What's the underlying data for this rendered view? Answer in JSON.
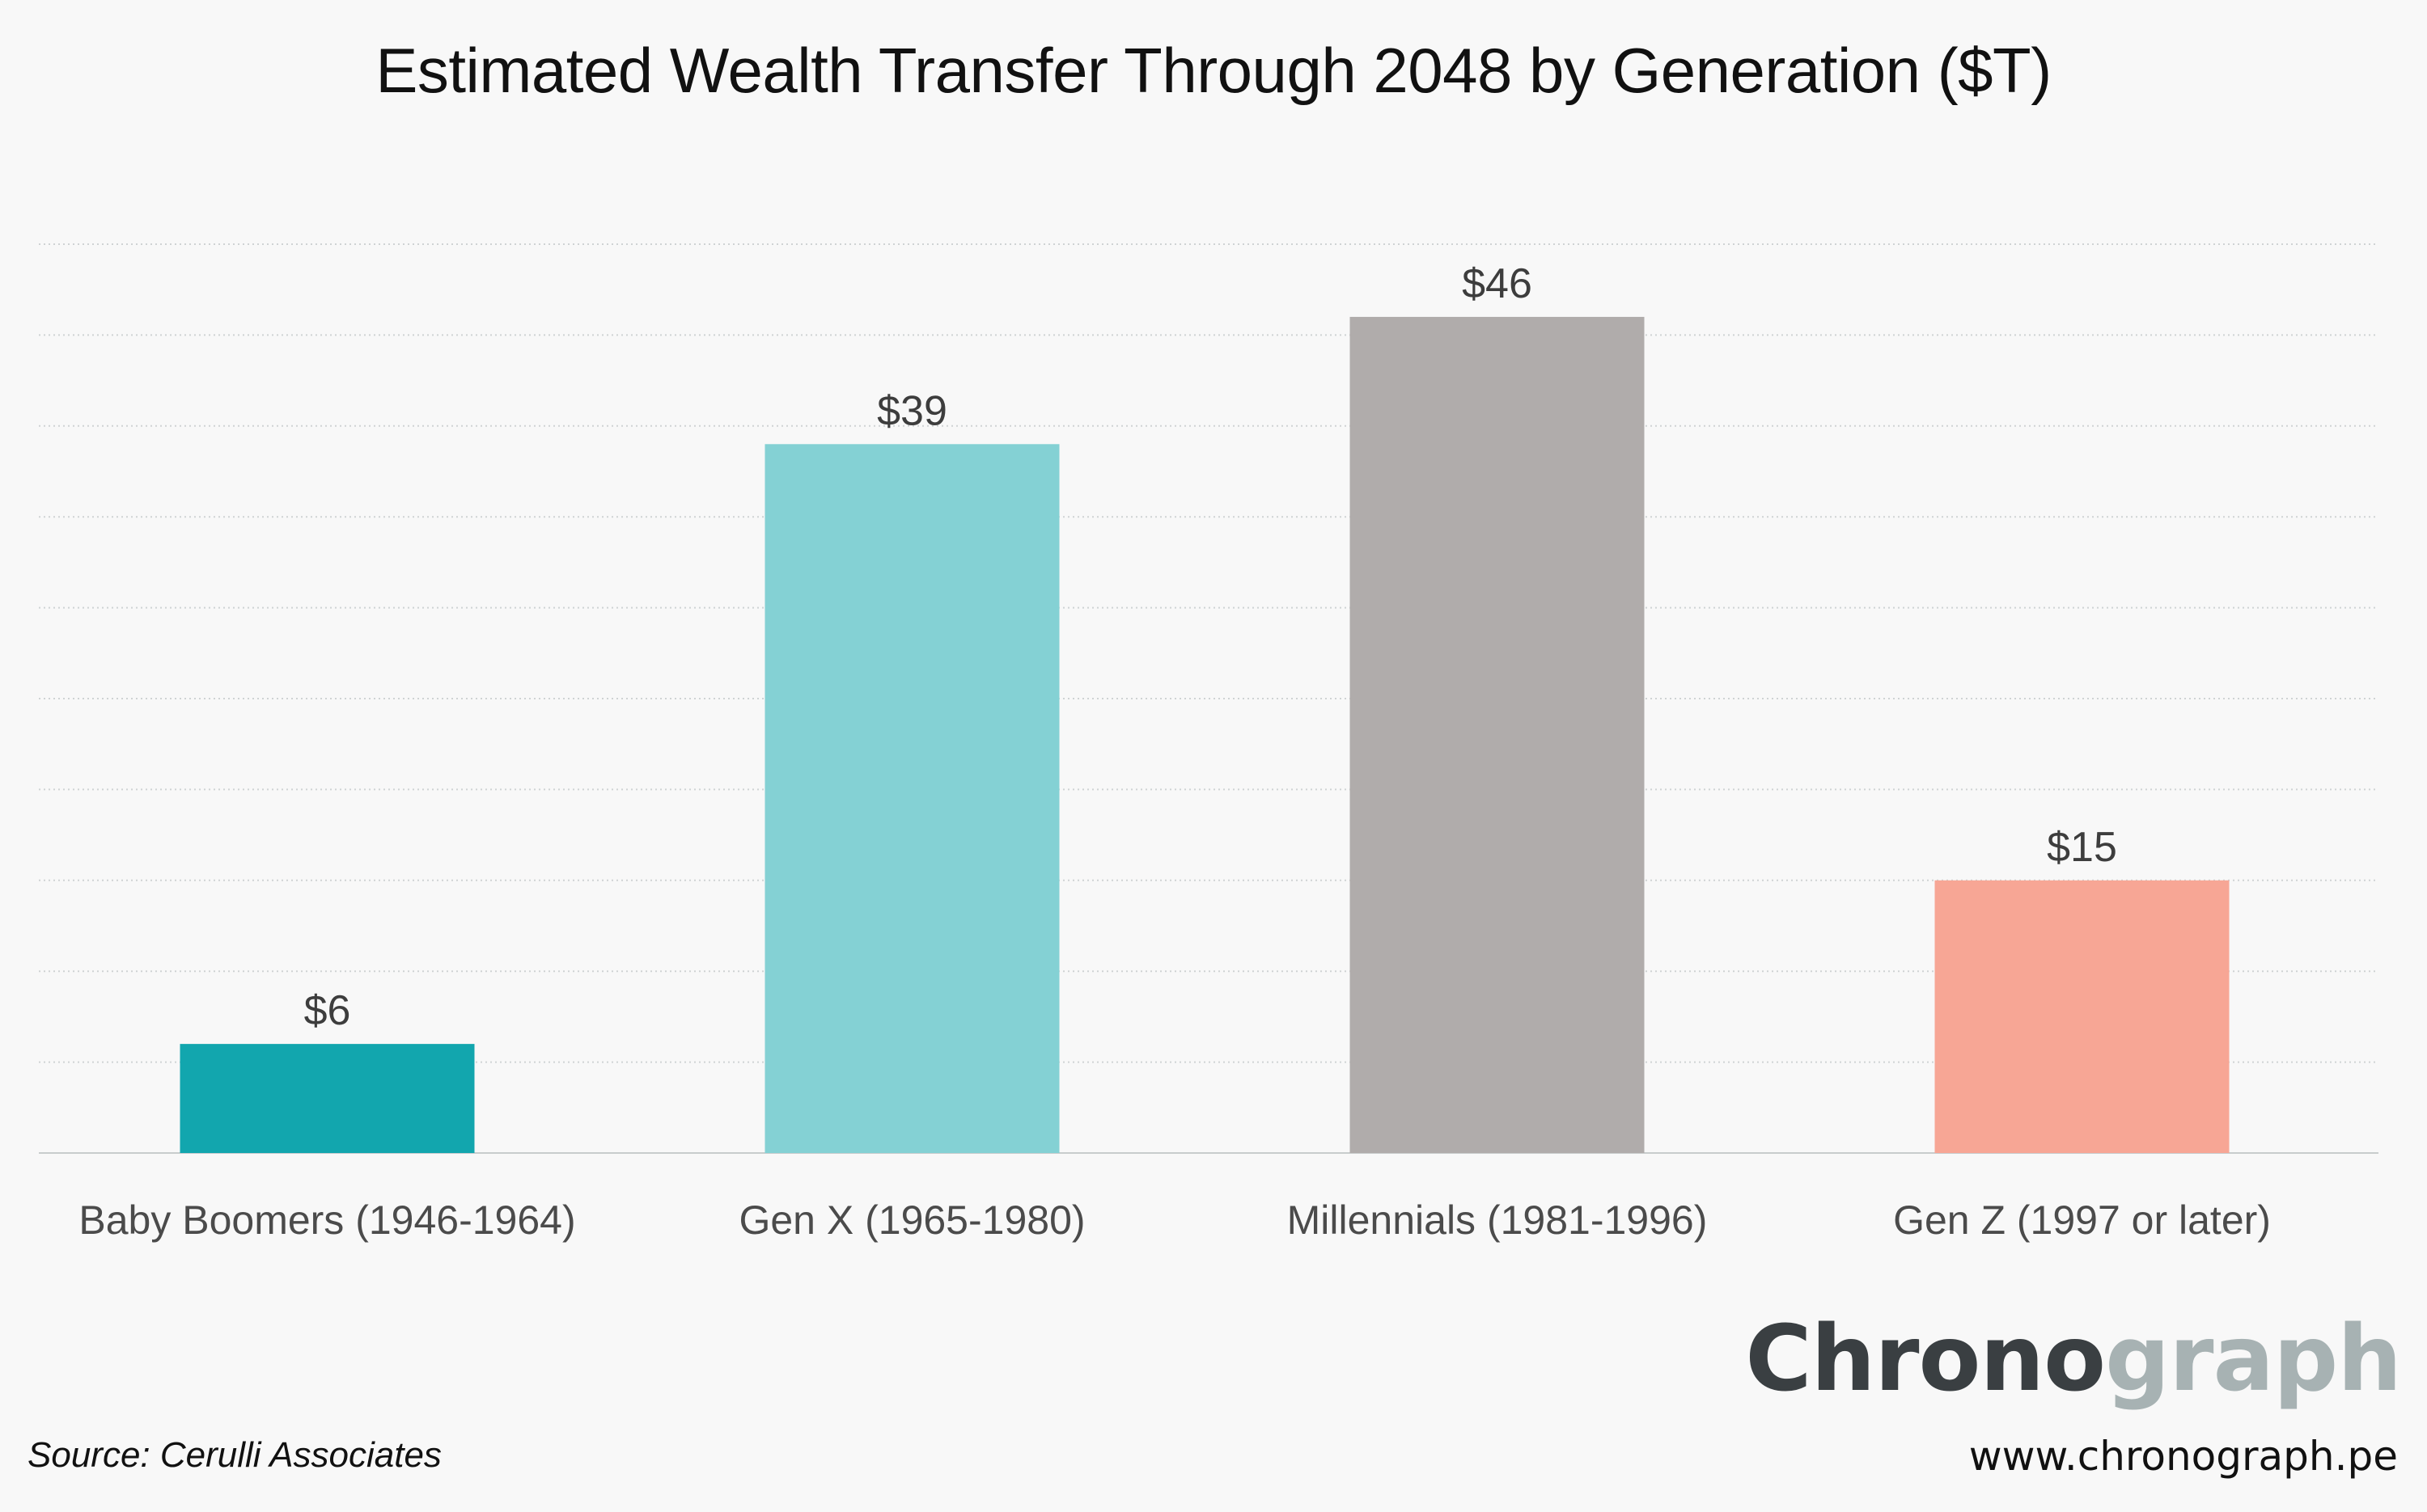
{
  "chart_data": {
    "type": "bar",
    "title": "Estimated Wealth Transfer Through 2048 by Generation ($T)",
    "categories": [
      "Baby Boomers (1946-1964)",
      "Gen X (1965-1980)",
      "Millennials (1981-1996)",
      "Gen Z (1997 or later)"
    ],
    "values": [
      6,
      39,
      46,
      15
    ],
    "value_labels": [
      "$6",
      "$39",
      "$46",
      "$15"
    ],
    "colors": [
      "#12a6ae",
      "#84d1d4",
      "#b0acab",
      "#f7a695"
    ],
    "xlabel": "",
    "ylabel": "",
    "ylim": [
      0,
      50
    ],
    "grid": true,
    "gridline_step": 5
  },
  "footer": {
    "source": "Source: Cerulli Associates",
    "brand_part_a": "Chrono",
    "brand_part_b": "graph",
    "url": "www.chronograph.pe"
  }
}
